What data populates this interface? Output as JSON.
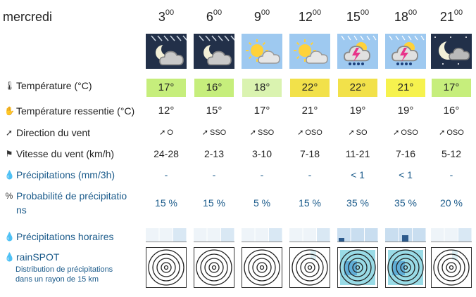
{
  "day": "mercredi",
  "hours": [
    {
      "h": "3",
      "m": "00"
    },
    {
      "h": "6",
      "m": "00"
    },
    {
      "h": "9",
      "m": "00"
    },
    {
      "h": "12",
      "m": "00"
    },
    {
      "h": "15",
      "m": "00"
    },
    {
      "h": "18",
      "m": "00"
    },
    {
      "h": "21",
      "m": "00"
    }
  ],
  "weather_icons": [
    "night-cloud-rain-icon",
    "night-cloud-rain-icon",
    "sun-cloud-icon",
    "sun-cloud-icon",
    "thunderstorm-icon",
    "thunderstorm-icon",
    "moon-cloud-icon"
  ],
  "labels": {
    "temperature": "Température (°C)",
    "feels_like": "Température ressentie (°C)",
    "wind_dir": "Direction du vent",
    "wind_speed": "Vitesse du vent (km/h)",
    "precip": "Précipitations (mm/3h)",
    "prob_line1": "Probabilité de précipitatio",
    "prob_line2": "ns",
    "hourly": "Précipitations horaires",
    "rainspot": "rainSPOT",
    "rainspot_sub1": "Distribution de précipitations",
    "rainspot_sub2": "dans un rayon de 15 km"
  },
  "temperature": [
    "17°",
    "16°",
    "18°",
    "22°",
    "22°",
    "21°",
    "17°"
  ],
  "temperature_colors": [
    "#c6ee7c",
    "#c6ee7c",
    "#daf3b0",
    "#f2e14a",
    "#f2e14a",
    "#f6f24e",
    "#c6ee7c"
  ],
  "feels_like": [
    "12°",
    "15°",
    "17°",
    "21°",
    "19°",
    "19°",
    "16°"
  ],
  "wind_dir": [
    "O",
    "SSO",
    "SSO",
    "OSO",
    "SO",
    "OSO",
    "OSO"
  ],
  "wind_speed": [
    "24-28",
    "2-13",
    "3-10",
    "7-18",
    "11-21",
    "7-16",
    "5-12"
  ],
  "precip": [
    "-",
    "-",
    "-",
    "-",
    "< 1",
    "< 1",
    "-"
  ],
  "probability": [
    "15 %",
    "15 %",
    "5 %",
    "15 %",
    "35 %",
    "35 %",
    "20 %"
  ]
}
